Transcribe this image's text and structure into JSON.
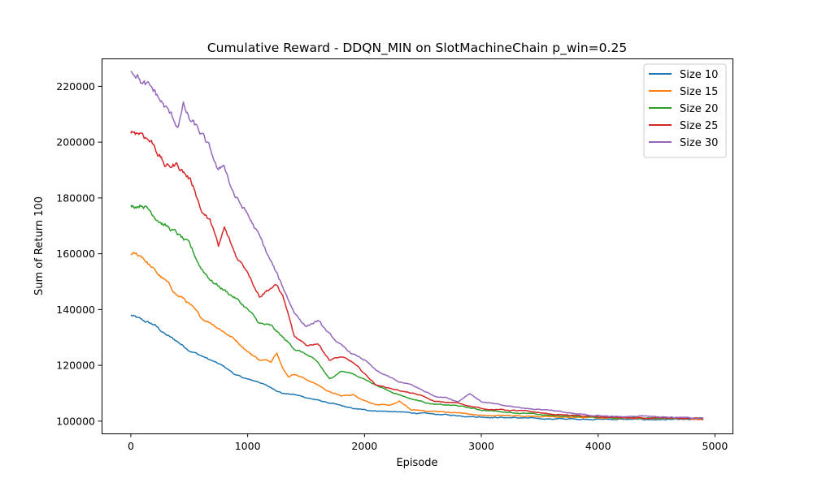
{
  "chart_data": {
    "type": "line",
    "title": "Cumulative Reward - DDQN_MIN on SlotMachineChain p_win=0.25",
    "xlabel": "Episode",
    "ylabel": "Sum of Return 100",
    "xlim": [
      -250,
      5150
    ],
    "ylim": [
      95600,
      230000
    ],
    "xticks": [
      0,
      1000,
      2000,
      3000,
      4000,
      5000
    ],
    "yticks": [
      100000,
      120000,
      140000,
      160000,
      180000,
      200000,
      220000
    ],
    "grid": false,
    "legend_position": "top-right",
    "series": [
      {
        "name": "Size 10",
        "color": "#1f77b4",
        "points": [
          [
            0,
            138000
          ],
          [
            100,
            136000
          ],
          [
            200,
            134500
          ],
          [
            300,
            131000
          ],
          [
            400,
            128500
          ],
          [
            500,
            125500
          ],
          [
            600,
            123500
          ],
          [
            700,
            121500
          ],
          [
            800,
            119500
          ],
          [
            900,
            116500
          ],
          [
            1000,
            115000
          ],
          [
            1100,
            114000
          ],
          [
            1200,
            112000
          ],
          [
            1300,
            110000
          ],
          [
            1400,
            109500
          ],
          [
            1500,
            108500
          ],
          [
            1600,
            107500
          ],
          [
            1700,
            106500
          ],
          [
            1800,
            105500
          ],
          [
            1900,
            104500
          ],
          [
            2000,
            104000
          ],
          [
            2200,
            103500
          ],
          [
            2400,
            103000
          ],
          [
            2600,
            102500
          ],
          [
            2800,
            102000
          ],
          [
            3000,
            101500
          ],
          [
            3300,
            101200
          ],
          [
            3600,
            100800
          ],
          [
            4000,
            100700
          ],
          [
            4400,
            100600
          ],
          [
            4900,
            100500
          ]
        ]
      },
      {
        "name": "Size 15",
        "color": "#ff7f0e",
        "points": [
          [
            0,
            160000
          ],
          [
            100,
            159000
          ],
          [
            200,
            154000
          ],
          [
            300,
            150000
          ],
          [
            400,
            145000
          ],
          [
            450,
            144000
          ],
          [
            500,
            142000
          ],
          [
            600,
            137000
          ],
          [
            700,
            135000
          ],
          [
            800,
            132000
          ],
          [
            900,
            129000
          ],
          [
            1000,
            125000
          ],
          [
            1100,
            122000
          ],
          [
            1200,
            121500
          ],
          [
            1250,
            125000
          ],
          [
            1300,
            119000
          ],
          [
            1350,
            116000
          ],
          [
            1400,
            117000
          ],
          [
            1500,
            115000
          ],
          [
            1600,
            113000
          ],
          [
            1700,
            110500
          ],
          [
            1800,
            109000
          ],
          [
            1900,
            109500
          ],
          [
            2000,
            107500
          ],
          [
            2100,
            106000
          ],
          [
            2200,
            105500
          ],
          [
            2300,
            107000
          ],
          [
            2400,
            104000
          ],
          [
            2600,
            103500
          ],
          [
            2800,
            103000
          ],
          [
            3000,
            102000
          ],
          [
            3300,
            102000
          ],
          [
            3600,
            101500
          ],
          [
            4000,
            101200
          ],
          [
            4400,
            101000
          ],
          [
            4900,
            100800
          ]
        ]
      },
      {
        "name": "Size 20",
        "color": "#2ca02c",
        "points": [
          [
            0,
            177000
          ],
          [
            100,
            178000
          ],
          [
            200,
            174000
          ],
          [
            300,
            170000
          ],
          [
            400,
            167000
          ],
          [
            500,
            163000
          ],
          [
            600,
            155000
          ],
          [
            700,
            150000
          ],
          [
            800,
            147000
          ],
          [
            900,
            144000
          ],
          [
            1000,
            140000
          ],
          [
            1100,
            135000
          ],
          [
            1200,
            134000
          ],
          [
            1300,
            130000
          ],
          [
            1400,
            126000
          ],
          [
            1500,
            124000
          ],
          [
            1600,
            121000
          ],
          [
            1700,
            115000
          ],
          [
            1800,
            118000
          ],
          [
            1900,
            117000
          ],
          [
            2000,
            115000
          ],
          [
            2100,
            113000
          ],
          [
            2200,
            111000
          ],
          [
            2300,
            109500
          ],
          [
            2400,
            108000
          ],
          [
            2500,
            107000
          ],
          [
            2600,
            106000
          ],
          [
            2800,
            105500
          ],
          [
            3000,
            104000
          ],
          [
            3300,
            103000
          ],
          [
            3600,
            102000
          ],
          [
            4000,
            101500
          ],
          [
            4400,
            101000
          ],
          [
            4900,
            101000
          ]
        ]
      },
      {
        "name": "Size 25",
        "color": "#d62728",
        "points": [
          [
            0,
            204000
          ],
          [
            100,
            203500
          ],
          [
            200,
            199000
          ],
          [
            300,
            191000
          ],
          [
            400,
            192000
          ],
          [
            500,
            187000
          ],
          [
            550,
            183000
          ],
          [
            600,
            176000
          ],
          [
            700,
            170000
          ],
          [
            750,
            162000
          ],
          [
            800,
            169000
          ],
          [
            850,
            164000
          ],
          [
            900,
            159000
          ],
          [
            1000,
            154000
          ],
          [
            1100,
            145000
          ],
          [
            1200,
            148000
          ],
          [
            1250,
            148500
          ],
          [
            1300,
            145000
          ],
          [
            1350,
            138000
          ],
          [
            1400,
            130000
          ],
          [
            1500,
            127000
          ],
          [
            1600,
            128000
          ],
          [
            1700,
            122000
          ],
          [
            1800,
            123000
          ],
          [
            1900,
            121000
          ],
          [
            2000,
            117000
          ],
          [
            2100,
            113000
          ],
          [
            2200,
            112000
          ],
          [
            2300,
            111000
          ],
          [
            2400,
            110000
          ],
          [
            2500,
            109000
          ],
          [
            2600,
            107000
          ],
          [
            2800,
            106500
          ],
          [
            3000,
            104500
          ],
          [
            3200,
            104000
          ],
          [
            3400,
            103500
          ],
          [
            3600,
            102500
          ],
          [
            3800,
            102000
          ],
          [
            4000,
            101500
          ],
          [
            4400,
            101000
          ],
          [
            4900,
            101000
          ]
        ]
      },
      {
        "name": "Size 30",
        "color": "#9467bd",
        "points": [
          [
            0,
            226000
          ],
          [
            50,
            225000
          ],
          [
            100,
            221000
          ],
          [
            200,
            218000
          ],
          [
            300,
            212000
          ],
          [
            400,
            206000
          ],
          [
            450,
            213000
          ],
          [
            500,
            208000
          ],
          [
            600,
            203000
          ],
          [
            700,
            195000
          ],
          [
            750,
            189000
          ],
          [
            800,
            192000
          ],
          [
            850,
            185000
          ],
          [
            900,
            180000
          ],
          [
            1000,
            174000
          ],
          [
            1100,
            166000
          ],
          [
            1200,
            157000
          ],
          [
            1300,
            148000
          ],
          [
            1400,
            139000
          ],
          [
            1500,
            134000
          ],
          [
            1600,
            136000
          ],
          [
            1700,
            131000
          ],
          [
            1800,
            127000
          ],
          [
            1900,
            124000
          ],
          [
            2000,
            122000
          ],
          [
            2100,
            118000
          ],
          [
            2200,
            116000
          ],
          [
            2300,
            114000
          ],
          [
            2400,
            113000
          ],
          [
            2500,
            111000
          ],
          [
            2600,
            109000
          ],
          [
            2700,
            108500
          ],
          [
            2800,
            107000
          ],
          [
            2900,
            110000
          ],
          [
            3000,
            107000
          ],
          [
            3200,
            105500
          ],
          [
            3400,
            104500
          ],
          [
            3600,
            104000
          ],
          [
            3800,
            102500
          ],
          [
            4000,
            102000
          ],
          [
            4200,
            101500
          ],
          [
            4400,
            102000
          ],
          [
            4600,
            101500
          ],
          [
            4900,
            101000
          ]
        ]
      }
    ]
  }
}
